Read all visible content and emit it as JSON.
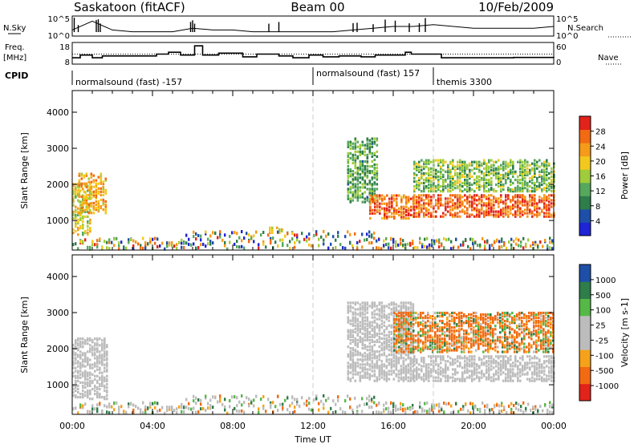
{
  "header": {
    "station": "Saskatoon (fitACF)",
    "beam": "Beam 00",
    "date": "10/Feb/2009"
  },
  "sky_panel": {
    "left_label": "N.Sky",
    "left_ticks": [
      "10^5",
      "10^0"
    ],
    "right_label": "N.Search",
    "right_ticks": [
      "10^5",
      "10^0"
    ]
  },
  "freq_panel": {
    "left_label_line1": "Freq.",
    "left_label_line2": "[MHz]",
    "left_ticks": [
      "18",
      "8"
    ],
    "right_label": "Nave",
    "right_ticks": [
      "60",
      "0"
    ],
    "cpid_label": "CPID",
    "segments": [
      {
        "label": "normalsound (fast) -157",
        "start_hour": 0
      },
      {
        "label": "normalsound (fast) 157",
        "start_hour": 12
      },
      {
        "label": "themis 3300",
        "start_hour": 18
      }
    ]
  },
  "power_panel": {
    "ylabel": "Slant Range [km]",
    "y_ticks": [
      "1000",
      "2000",
      "3000",
      "4000"
    ],
    "colorbar_title": "Power [dB]",
    "colorbar_ticks": [
      "4",
      "8",
      "12",
      "16",
      "20",
      "24",
      "28"
    ]
  },
  "velocity_panel": {
    "ylabel": "Slant Range [km]",
    "y_ticks": [
      "1000",
      "2000",
      "3000",
      "4000"
    ],
    "colorbar_title": "Velocity [m s-1]",
    "colorbar_ticks": [
      "-1000",
      "-500",
      "-100",
      "-25",
      "25",
      "100",
      "500",
      "1000"
    ]
  },
  "x_axis": {
    "label": "Time UT",
    "ticks": [
      "00:00",
      "04:00",
      "08:00",
      "12:00",
      "16:00",
      "20:00",
      "00:00"
    ]
  },
  "colors": {
    "power_scale": [
      "#1f24d6",
      "#1e4fa8",
      "#2e7d4a",
      "#56a85c",
      "#9fcc3a",
      "#f2c81e",
      "#f59a1a",
      "#f26a12",
      "#e2231a"
    ],
    "velocity_scale": [
      "#e2231a",
      "#f26a12",
      "#f5a21a",
      "#bcbcbc",
      "#bcbcbc",
      "#56b847",
      "#2e7d4a",
      "#1e4fa8"
    ],
    "ground_scatter": "#bcbcbc",
    "guide_line": "#cccccc"
  },
  "chart_data": [
    {
      "type": "line",
      "panel": "N.Sky / N.Search",
      "x_unit": "hours UT",
      "x_range": [
        0,
        24
      ],
      "series": [
        {
          "name": "N.Sky",
          "x": [
            0,
            1,
            2,
            3,
            4,
            5,
            6,
            7,
            8,
            9,
            10,
            11,
            12,
            13,
            14,
            15,
            16,
            17,
            18,
            19,
            20,
            21,
            22,
            23,
            24
          ],
          "y": [
            3,
            8,
            3,
            2,
            2,
            2,
            4,
            3,
            3,
            2,
            2,
            2,
            2,
            2,
            3,
            4,
            5,
            5,
            6,
            5,
            4,
            4,
            4,
            4,
            5
          ]
        }
      ]
    },
    {
      "type": "line",
      "panel": "Freq / Nave",
      "x_unit": "hours UT",
      "x_range": [
        0,
        24
      ],
      "series": [
        {
          "name": "Freq.",
          "x": [
            0,
            0.4,
            1,
            1.5,
            4.2,
            4.8,
            5.4,
            6.1,
            6.5,
            7.3,
            8.5,
            9.2,
            10.3,
            11,
            11.8,
            12.5,
            13.3,
            14.4,
            15.1,
            16.6,
            16.9,
            18.4,
            22,
            24
          ],
          "y": [
            11,
            12.5,
            11,
            12,
            13,
            14,
            12.5,
            17.5,
            12.5,
            13.5,
            11.5,
            13,
            12,
            11,
            12.5,
            11.5,
            12,
            11.5,
            12.5,
            14,
            13,
            11,
            11.2,
            11
          ]
        },
        {
          "name": "Nave",
          "x": [
            0,
            24
          ],
          "y": [
            30,
            30
          ]
        }
      ]
    },
    {
      "type": "heatmap",
      "panel": "Power",
      "x_unit": "hours UT",
      "y_unit": "km",
      "x_range": [
        0,
        24
      ],
      "ylim": [
        180,
        4600
      ],
      "z_unit": "dB",
      "z_range": [
        0,
        32
      ],
      "regions": [
        {
          "t0": 0.0,
          "t1": 0.9,
          "r0": 600,
          "r1": 2000,
          "p": 18
        },
        {
          "t0": 0.3,
          "t1": 1.7,
          "r0": 1200,
          "r1": 2300,
          "p": 22
        },
        {
          "t0": 9.8,
          "t1": 10.6,
          "r0": 650,
          "r1": 800,
          "p": 20
        },
        {
          "t0": 13.7,
          "t1": 15.2,
          "r0": 1500,
          "r1": 3300,
          "p": 12
        },
        {
          "t0": 14.8,
          "t1": 17.0,
          "r0": 1050,
          "r1": 1700,
          "p": 26
        },
        {
          "t0": 17.0,
          "t1": 24.0,
          "r0": 1100,
          "r1": 1700,
          "p": 27
        },
        {
          "t0": 17.0,
          "t1": 24.0,
          "r0": 1800,
          "r1": 2700,
          "p": 14
        }
      ]
    },
    {
      "type": "heatmap",
      "panel": "Velocity",
      "x_unit": "hours UT",
      "y_unit": "km",
      "x_range": [
        0,
        24
      ],
      "ylim": [
        180,
        4600
      ],
      "z_unit": "m s-1",
      "z_range": [
        -1000,
        1000
      ],
      "regions": [
        {
          "t0": 0.0,
          "t1": 1.7,
          "r0": 600,
          "r1": 2300,
          "v": 0
        },
        {
          "t0": 13.7,
          "t1": 17.0,
          "r0": 1100,
          "r1": 3300,
          "v": 0
        },
        {
          "t0": 17.0,
          "t1": 24.0,
          "r0": 1100,
          "r1": 1800,
          "v": 0
        },
        {
          "t0": 16.0,
          "t1": 24.0,
          "r0": 1900,
          "r1": 3000,
          "v": -150
        }
      ]
    }
  ]
}
